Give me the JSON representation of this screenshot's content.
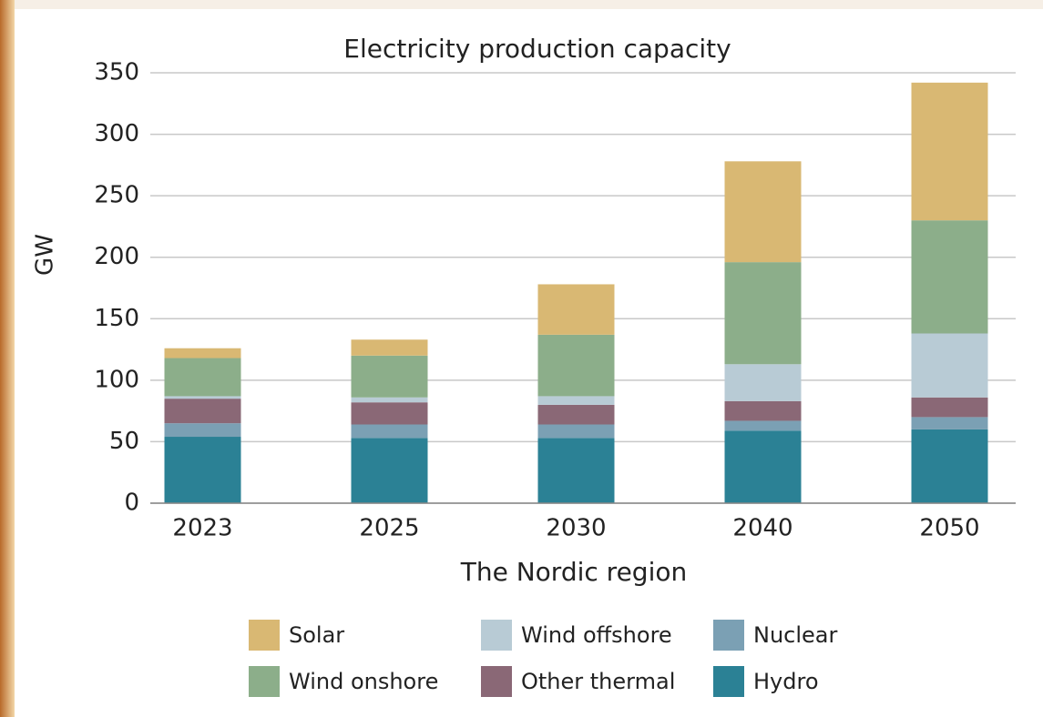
{
  "chart_data": {
    "type": "stacked_bar",
    "title": "Electricity production capacity",
    "x_label": "The Nordic region",
    "y_label": "GW",
    "categories": [
      "2023",
      "2025",
      "2030",
      "2040",
      "2050"
    ],
    "series": [
      {
        "name": "Hydro",
        "color": "#2b8195",
        "values": [
          54,
          53,
          53,
          59,
          60
        ]
      },
      {
        "name": "Nuclear",
        "color": "#7ba0b4",
        "values": [
          11,
          11,
          11,
          8,
          10
        ]
      },
      {
        "name": "Other thermal",
        "color": "#8a6876",
        "values": [
          20,
          18,
          16,
          16,
          16
        ]
      },
      {
        "name": "Wind offshore",
        "color": "#b8cbd5",
        "values": [
          2,
          4,
          7,
          30,
          52
        ]
      },
      {
        "name": "Wind onshore",
        "color": "#8cae8a",
        "values": [
          31,
          34,
          50,
          83,
          92
        ]
      },
      {
        "name": "Solar",
        "color": "#d9b873",
        "values": [
          8,
          13,
          41,
          82,
          112
        ]
      }
    ],
    "ylim": [
      0,
      350
    ],
    "yticks": [
      0,
      50,
      100,
      150,
      200,
      250,
      300,
      350
    ],
    "grid": true
  }
}
